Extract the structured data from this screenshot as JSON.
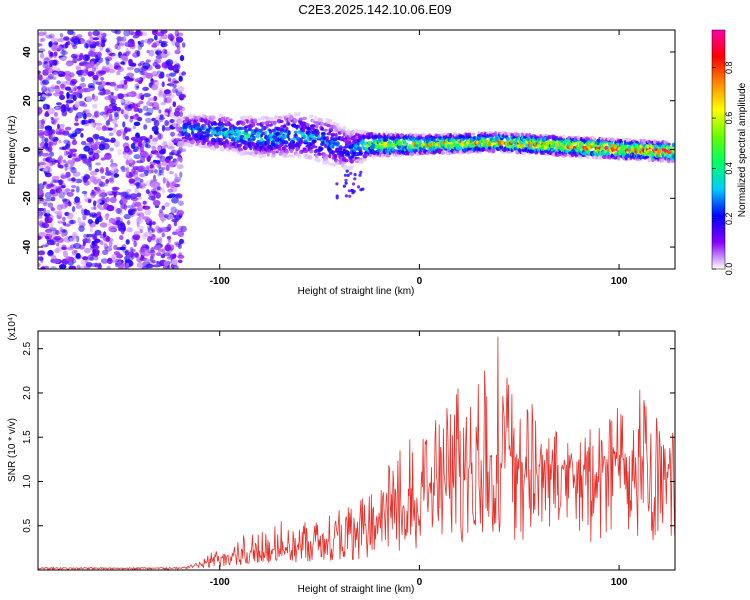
{
  "title": "C2E3.2025.142.10.06.E09",
  "chart_data": [
    {
      "type": "heatmap",
      "xlabel": "Height of straight line (km)",
      "ylabel": "Frequency (Hz)",
      "xlim": [
        -191,
        128
      ],
      "ylim": [
        -49,
        49
      ],
      "x_ticks": [
        -100,
        0,
        100
      ],
      "y_ticks": [
        -40,
        -20,
        0,
        20,
        40
      ],
      "colorbar": {
        "label": "Normalized spectral amplitude",
        "range": [
          0,
          0.95
        ],
        "ticks": [
          0.0,
          0.2,
          0.4,
          0.6,
          0.8
        ],
        "tick_labels": [
          "0.0",
          "0.2",
          "0.4",
          "0.6",
          "0.8"
        ],
        "colors": [
          "#ffffff",
          "#8800ff",
          "#0000ff",
          "#00ccff",
          "#00ff66",
          "#66ff00",
          "#ffff00",
          "#ff8800",
          "#ff0000",
          "#ff00aa"
        ]
      },
      "noise_region": {
        "x_range": [
          -191,
          -118
        ],
        "freq_range": [
          -49,
          49
        ],
        "amplitude": 0.15
      },
      "signal_track": [
        {
          "x": -118,
          "freq_center": 8,
          "half_width": 6,
          "amplitude": 0.3
        },
        {
          "x": -100,
          "freq_center": 7,
          "half_width": 7,
          "amplitude": 0.35
        },
        {
          "x": -80,
          "freq_center": 5,
          "half_width": 8,
          "amplitude": 0.35
        },
        {
          "x": -60,
          "freq_center": 6,
          "half_width": 9,
          "amplitude": 0.3
        },
        {
          "x": -45,
          "freq_center": 3,
          "half_width": 9,
          "amplitude": 0.3
        },
        {
          "x": -35,
          "freq_center": 0,
          "half_width": 8,
          "amplitude": 0.25
        },
        {
          "x": -25,
          "freq_center": 2,
          "half_width": 5,
          "amplitude": 0.55
        },
        {
          "x": 0,
          "freq_center": 2,
          "half_width": 4,
          "amplitude": 0.65
        },
        {
          "x": 40,
          "freq_center": 3,
          "half_width": 4,
          "amplitude": 0.7
        },
        {
          "x": 80,
          "freq_center": 1,
          "half_width": 4,
          "amplitude": 0.8
        },
        {
          "x": 128,
          "freq_center": -1,
          "half_width": 4,
          "amplitude": 0.85
        }
      ]
    },
    {
      "type": "line",
      "xlabel": "Height of straight line (km)",
      "ylabel": "SNR (10 * v/v)",
      "y_multiplier": "(x10⁴)",
      "xlim": [
        -191,
        128
      ],
      "ylim": [
        0,
        2.7
      ],
      "x_ticks": [
        -100,
        0,
        100
      ],
      "y_ticks": [
        0.5,
        1.0,
        1.5,
        2.0,
        2.5
      ],
      "y_tick_labels": [
        "0.5",
        "1.0",
        "1.5",
        "2.0",
        "2.5"
      ],
      "line_color": "#e8302a",
      "series": [
        {
          "x": [
            -191,
            -120,
            -110,
            -100,
            -80,
            -60,
            -40,
            -25,
            -20,
            -10,
            0,
            10,
            20,
            30,
            40,
            50,
            60,
            70,
            80,
            90,
            100,
            110,
            120,
            128
          ],
          "y_mean": [
            0.02,
            0.02,
            0.05,
            0.12,
            0.2,
            0.25,
            0.35,
            0.45,
            0.55,
            0.65,
            0.75,
            0.85,
            0.95,
            1.05,
            1.15,
            1.1,
            1.1,
            1.15,
            1.05,
            1.05,
            1.15,
            1.1,
            1.05,
            1.15
          ],
          "y_peak": [
            0.03,
            0.03,
            0.1,
            0.3,
            0.5,
            0.6,
            0.75,
            0.85,
            1.1,
            1.35,
            1.6,
            1.85,
            2.2,
            2.55,
            2.7,
            2.1,
            1.75,
            1.55,
            1.45,
            1.75,
            1.9,
            2.25,
            1.7,
            1.75
          ]
        }
      ]
    }
  ]
}
